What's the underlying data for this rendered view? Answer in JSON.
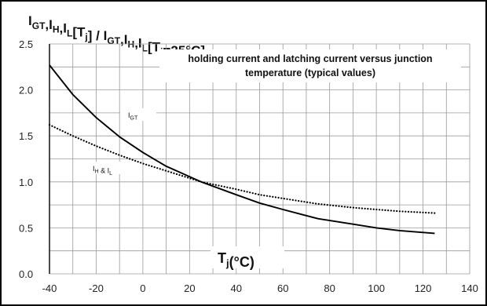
{
  "chart_data": {
    "type": "line",
    "title": "IGT,IH,IL[Tj] / IGT,IH,IL[Tj=25°C]",
    "title_parts": [
      "IGT,IH,IL[Tj] / IGT,IH,IL[Tj=25°C]"
    ],
    "annotation": [
      "holding current and latching current versus junction",
      "temperature (typical values)"
    ],
    "xlabel": "Tj(°C)",
    "ylabel": "",
    "xlim": [
      -40,
      140
    ],
    "ylim": [
      0.0,
      2.5
    ],
    "xticks": [
      "-40",
      "-20",
      "0",
      "20",
      "40",
      "60",
      "80",
      "100",
      "120",
      "140"
    ],
    "yticks": [
      "0.0",
      "0.5",
      "1.0",
      "1.5",
      "2.0",
      "2.5"
    ],
    "grid": true,
    "series": [
      {
        "name": "IGT",
        "style": "solid",
        "x": [
          -40,
          -30,
          -20,
          -10,
          0,
          10,
          25,
          40,
          50,
          60,
          75,
          90,
          100,
          110,
          125
        ],
        "y": [
          2.27,
          1.95,
          1.7,
          1.49,
          1.32,
          1.17,
          1.0,
          0.86,
          0.77,
          0.7,
          0.6,
          0.54,
          0.5,
          0.47,
          0.44
        ]
      },
      {
        "name": "IH & IL",
        "style": "dotted",
        "x": [
          -40,
          -30,
          -20,
          -10,
          0,
          10,
          25,
          40,
          50,
          60,
          75,
          90,
          100,
          110,
          125
        ],
        "y": [
          1.62,
          1.5,
          1.39,
          1.29,
          1.2,
          1.12,
          1.0,
          0.92,
          0.86,
          0.82,
          0.76,
          0.72,
          0.7,
          0.68,
          0.66
        ]
      }
    ],
    "labels": {
      "igt_label": "IGT",
      "ihl_label": "IH & IL"
    }
  }
}
